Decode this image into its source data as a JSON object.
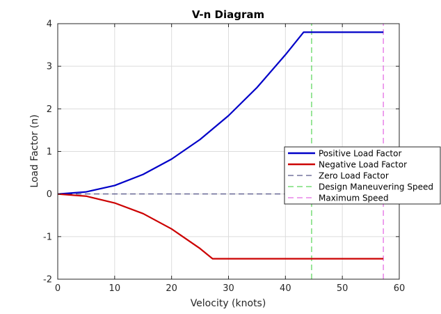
{
  "chart_data": {
    "type": "line",
    "title": "V-n Diagram",
    "xlabel": "Velocity (knots)",
    "ylabel": "Load Factor (n)",
    "xlim": [
      0,
      60
    ],
    "ylim": [
      -2,
      4
    ],
    "xticks": [
      "0",
      "10",
      "20",
      "30",
      "40",
      "50",
      "60"
    ],
    "yticks": [
      "-2",
      "-1",
      "0",
      "1",
      "2",
      "3",
      "4"
    ],
    "grid": true,
    "legend_position": "right",
    "series": [
      {
        "name": "Positive Load Factor",
        "color": "#0000c8",
        "style": "solid",
        "x": [
          0,
          5,
          10,
          15,
          20,
          25,
          30,
          35,
          40,
          43.2,
          45,
          50,
          55,
          57.2
        ],
        "y": [
          0,
          0.05,
          0.2,
          0.46,
          0.82,
          1.28,
          1.84,
          2.5,
          3.27,
          3.8,
          3.8,
          3.8,
          3.8,
          3.8
        ]
      },
      {
        "name": "Negative Load Factor",
        "color": "#cc0000",
        "style": "solid",
        "x": [
          0,
          5,
          10,
          15,
          20,
          25,
          27.2,
          30,
          35,
          40,
          45,
          50,
          55,
          57.2
        ],
        "y": [
          0,
          -0.05,
          -0.21,
          -0.46,
          -0.82,
          -1.28,
          -1.52,
          -1.52,
          -1.52,
          -1.52,
          -1.52,
          -1.52,
          -1.52,
          -1.52
        ]
      },
      {
        "name": "Zero Load Factor",
        "color": "#2e2e6e",
        "style": "dashed",
        "x": [
          0,
          57.2
        ],
        "y": [
          0,
          0
        ]
      },
      {
        "name": "Design Maneuvering Speed",
        "color": "#33cc33",
        "style": "dashed",
        "x": [
          44.6,
          44.6
        ],
        "y": [
          -2,
          4
        ]
      },
      {
        "name": "Maximum Speed",
        "color": "#dd44dd",
        "style": "dashed",
        "x": [
          57.2,
          57.2
        ],
        "y": [
          -2,
          4
        ]
      }
    ]
  }
}
